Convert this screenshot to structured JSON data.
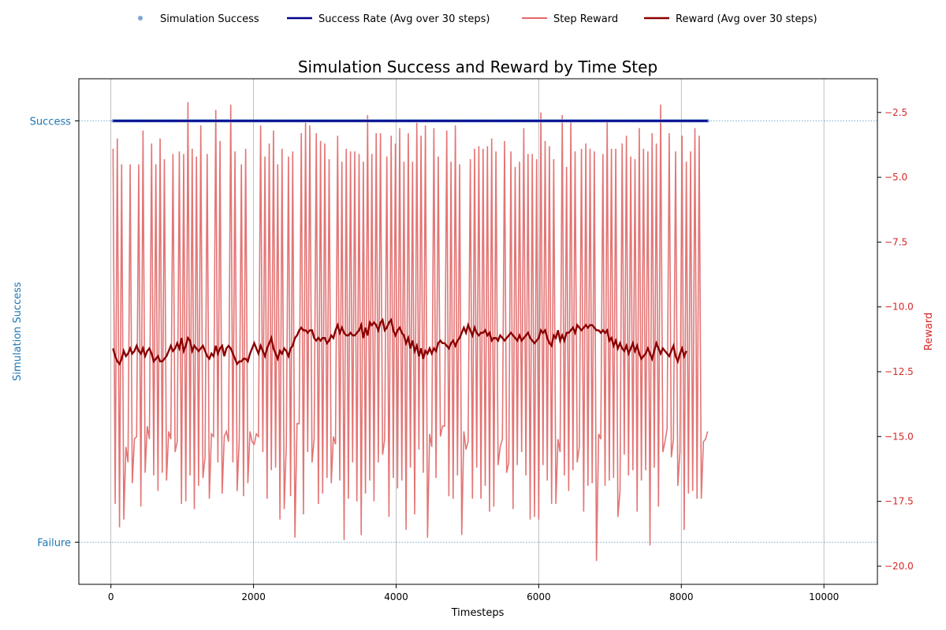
{
  "chart_data": {
    "type": "line",
    "title": "Simulation Success and Reward by Time Step",
    "xlabel": "Timesteps",
    "y_left_label": "Simulation Success",
    "y_right_label": "Reward",
    "xlim": [
      -450,
      10750
    ],
    "x_ticks": [
      0,
      2000,
      4000,
      6000,
      8000,
      10000
    ],
    "y_left_range": [
      -0.1,
      1.1
    ],
    "y_left_ticks": [
      {
        "value": 0,
        "label": "Failure"
      },
      {
        "value": 1,
        "label": "Success"
      }
    ],
    "y_right_range": [
      -20.7,
      -1.2
    ],
    "y_right_ticks": [
      -2.5,
      -5.0,
      -7.5,
      -10.0,
      -12.5,
      -15.0,
      -17.5,
      -20.0
    ],
    "grid": true,
    "legend_position": "top-center",
    "colors": {
      "success_points": "#7aa6d8",
      "success_rate": "#00008b",
      "step_reward": "#e06666",
      "avg_reward": "#8b0000",
      "left_axis": "#1f77b4",
      "right_axis": "#d62728"
    },
    "x_start": 30,
    "x_step": 30,
    "step_reward": [
      -3.9,
      -17.6,
      -3.5,
      -18.5,
      -4.5,
      -18.2,
      -15.4,
      -16.0,
      -4.5,
      -16.8,
      -15.1,
      -15.0,
      -4.5,
      -17.7,
      -3.2,
      -16.4,
      -14.6,
      -15.1,
      -3.7,
      -16.5,
      -4.5,
      -17.1,
      -3.5,
      -16.4,
      -4.3,
      -16.7,
      -14.8,
      -15.1,
      -4.1,
      -15.6,
      -15.2,
      -4.0,
      -17.6,
      -4.1,
      -17.5,
      -2.1,
      -16.5,
      -3.9,
      -17.8,
      -4.2,
      -16.9,
      -3.0,
      -16.6,
      -15.8,
      -4.1,
      -17.4,
      -14.9,
      -15.0,
      -2.4,
      -16.0,
      -3.6,
      -17.2,
      -15.0,
      -14.8,
      -15.2,
      -2.2,
      -16.0,
      -4.0,
      -17.1,
      -15.1,
      -4.5,
      -17.3,
      -3.9,
      -16.8,
      -14.8,
      -15.2,
      -15.3,
      -14.9,
      -15.0,
      -3.0,
      -15.6,
      -4.2,
      -17.4,
      -3.7,
      -16.3,
      -3.2,
      -16.2,
      -4.5,
      -18.2,
      -3.9,
      -17.8,
      -15.3,
      -4.2,
      -17.3,
      -4.0,
      -18.9,
      -14.5,
      -14.5,
      -3.3,
      -18.0,
      -2.9,
      -15.6,
      -3.0,
      -16.0,
      -15.1,
      -3.3,
      -17.6,
      -3.6,
      -17.2,
      -3.7,
      -16.6,
      -4.3,
      -16.8,
      -15.0,
      -15.3,
      -3.4,
      -16.7,
      -4.4,
      -19.0,
      -3.9,
      -17.4,
      -4.0,
      -16.0,
      -4.0,
      -17.5,
      -4.1,
      -18.8,
      -4.4,
      -17.2,
      -2.6,
      -16.7,
      -4.1,
      -17.5,
      -3.3,
      -16.0,
      -3.3,
      -15.7,
      -15.1,
      -4.2,
      -18.1,
      -3.4,
      -16.6,
      -3.7,
      -17.0,
      -3.1,
      -16.7,
      -4.4,
      -18.6,
      -3.3,
      -16.2,
      -4.4,
      -18.0,
      -2.9,
      -15.5,
      -3.4,
      -16.4,
      -3.0,
      -18.9,
      -14.9,
      -15.4,
      -3.1,
      -16.6,
      -4.2,
      -15.0,
      -14.6,
      -14.6,
      -3.2,
      -17.3,
      -4.4,
      -17.4,
      -3.0,
      -16.5,
      -4.5,
      -18.8,
      -14.8,
      -15.5,
      -15.2,
      -4.3,
      -17.4,
      -3.9,
      -16.2,
      -3.8,
      -17.4,
      -3.9,
      -16.9,
      -3.8,
      -17.9,
      -3.5,
      -17.7,
      -4.0,
      -16.1,
      -15.4,
      -15.1,
      -3.6,
      -16.4,
      -16.0,
      -4.0,
      -17.8,
      -4.6,
      -16.1,
      -4.4,
      -15.6,
      -3.1,
      -16.5,
      -4.1,
      -18.2,
      -4.1,
      -18.1,
      -4.3,
      -18.2,
      -2.5,
      -16.1,
      -3.6,
      -16.7,
      -3.8,
      -17.6,
      -4.3,
      -17.6,
      -15.1,
      -15.6,
      -2.6,
      -16.5,
      -4.6,
      -17.1,
      -2.8,
      -16.3,
      -4.0,
      -16.0,
      -15.4,
      -3.9,
      -17.9,
      -3.7,
      -16.9,
      -3.9,
      -16.8,
      -4.0,
      -19.8,
      -14.9,
      -15.1,
      -4.1,
      -16.9,
      -2.8,
      -16.7,
      -3.9,
      -16.6,
      -3.9,
      -18.1,
      -17.1,
      -3.7,
      -15.7,
      -3.4,
      -16.5,
      -4.2,
      -16.3,
      -4.3,
      -17.9,
      -3.1,
      -16.7,
      -3.9,
      -16.3,
      -4.0,
      -19.2,
      -3.3,
      -16.2,
      -3.7,
      -17.7,
      -2.2,
      -15.6,
      -15.2,
      -14.7,
      -3.3,
      -15.8,
      -15.1,
      -4.0,
      -16.9,
      -15.6,
      -3.4,
      -18.6,
      -4.4,
      -17.2,
      -4.0,
      -17.1,
      -3.1,
      -17.4,
      -3.4,
      -17.4,
      -15.2,
      -15.1,
      -14.8
    ],
    "avg_reward": [
      -11.6,
      -11.9,
      -12.1,
      -12.2,
      -12.0,
      -11.7,
      -11.9,
      -11.8,
      -11.6,
      -11.8,
      -11.7,
      -11.5,
      -11.7,
      -11.8,
      -11.6,
      -11.9,
      -11.7,
      -11.6,
      -11.8,
      -12.1,
      -12.0,
      -11.9,
      -12.1,
      -12.1,
      -12.0,
      -11.9,
      -11.7,
      -11.5,
      -11.7,
      -11.6,
      -11.4,
      -11.6,
      -11.2,
      -11.7,
      -11.5,
      -11.2,
      -11.3,
      -11.7,
      -11.5,
      -11.6,
      -11.7,
      -11.6,
      -11.5,
      -11.7,
      -11.9,
      -12.0,
      -11.8,
      -11.9,
      -11.5,
      -11.8,
      -11.6,
      -11.5,
      -11.9,
      -11.6,
      -11.5,
      -11.6,
      -11.8,
      -12.0,
      -12.2,
      -12.1,
      -12.1,
      -12.0,
      -12.0,
      -12.1,
      -11.8,
      -11.6,
      -11.4,
      -11.6,
      -11.8,
      -11.5,
      -11.7,
      -11.9,
      -11.6,
      -11.4,
      -11.2,
      -11.6,
      -11.8,
      -12.0,
      -11.7,
      -11.8,
      -11.6,
      -11.7,
      -11.9,
      -11.6,
      -11.5,
      -11.2,
      -11.1,
      -10.9,
      -10.8,
      -10.9,
      -10.9,
      -11.0,
      -10.9,
      -10.9,
      -11.2,
      -11.3,
      -11.2,
      -11.3,
      -11.2,
      -11.2,
      -11.4,
      -11.3,
      -11.1,
      -11.2,
      -10.9,
      -10.7,
      -11.0,
      -10.8,
      -11.0,
      -11.1,
      -11.1,
      -11.0,
      -11.1,
      -11.1,
      -11.0,
      -10.9,
      -10.7,
      -11.2,
      -10.8,
      -11.1,
      -10.6,
      -10.7,
      -10.6,
      -10.7,
      -10.9,
      -10.6,
      -10.5,
      -10.9,
      -10.8,
      -10.6,
      -10.5,
      -10.9,
      -11.1,
      -10.9,
      -10.8,
      -11.0,
      -11.1,
      -11.4,
      -11.2,
      -11.6,
      -11.3,
      -11.7,
      -11.5,
      -11.9,
      -11.6,
      -12.0,
      -11.7,
      -11.8,
      -11.6,
      -11.8,
      -11.6,
      -11.7,
      -11.4,
      -11.3,
      -11.4,
      -11.4,
      -11.5,
      -11.6,
      -11.4,
      -11.3,
      -11.5,
      -11.3,
      -11.2,
      -11.0,
      -10.8,
      -11.0,
      -10.7,
      -10.9,
      -11.1,
      -10.8,
      -11.0,
      -11.1,
      -11.0,
      -11.0,
      -10.9,
      -11.1,
      -11.0,
      -11.3,
      -11.2,
      -11.2,
      -11.3,
      -11.1,
      -11.2,
      -11.3,
      -11.2,
      -11.1,
      -11.0,
      -11.1,
      -11.2,
      -11.3,
      -11.1,
      -11.3,
      -11.2,
      -11.1,
      -11.0,
      -11.2,
      -11.3,
      -11.4,
      -11.3,
      -11.2,
      -10.9,
      -11.0,
      -10.9,
      -11.2,
      -11.4,
      -11.5,
      -11.1,
      -11.2,
      -10.9,
      -11.3,
      -11.1,
      -11.3,
      -11.0,
      -11.0,
      -10.9,
      -10.8,
      -11.0,
      -10.7,
      -10.8,
      -10.9,
      -10.8,
      -10.7,
      -10.8,
      -10.7,
      -10.7,
      -10.8,
      -10.9,
      -10.9,
      -11.0,
      -10.9,
      -11.0,
      -10.9,
      -11.3,
      -11.2,
      -11.5,
      -11.3,
      -11.6,
      -11.4,
      -11.6,
      -11.7,
      -11.5,
      -11.8,
      -11.6,
      -11.4,
      -11.7,
      -11.5,
      -11.8,
      -12.0,
      -11.9,
      -11.8,
      -11.6,
      -11.8,
      -12.0,
      -11.7,
      -11.4,
      -11.6,
      -11.8,
      -11.6,
      -11.7,
      -11.8,
      -11.9,
      -11.7,
      -11.5,
      -11.9,
      -12.1,
      -11.8,
      -11.6,
      -11.9,
      -11.7
    ],
    "success_rate": 1.0,
    "success_value": 1
  },
  "legend": {
    "items": [
      {
        "label": "Simulation Success",
        "marker": "dot"
      },
      {
        "label": "Success Rate (Avg over 30 steps)",
        "marker": "line"
      },
      {
        "label": "Step Reward",
        "marker": "line"
      },
      {
        "label": "Reward (Avg over 30 steps)",
        "marker": "line"
      }
    ]
  }
}
